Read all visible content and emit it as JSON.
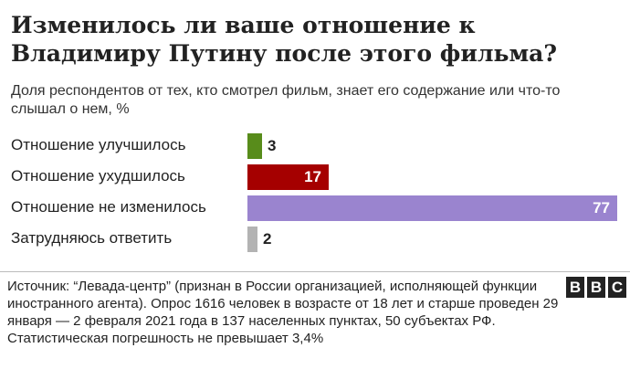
{
  "title": "Изменилось ли ваше отношение к Владимиру Путину после этого фильма?",
  "subtitle": "Доля респондентов от тех, кто смотрел фильм, знает его содержание или что-то слышал о нем, %",
  "chart_data": {
    "type": "bar",
    "orientation": "horizontal",
    "categories": [
      "Отношение улучшилось",
      "Отношение ухудшилось",
      "Отношение не изменилось",
      "Затрудняюсь ответить"
    ],
    "values": [
      3,
      17,
      77,
      2
    ],
    "colors": [
      "#588c1b",
      "#a50000",
      "#9a84cf",
      "#b3b3b3"
    ],
    "xlim": [
      0,
      77
    ],
    "grid": false,
    "legend": "none"
  },
  "source": "Источник: “Левада-центр” (признан в России организацией, исполняющей функции иностранного агента). Опрос 1616 человек в возрасте от 18 лет и старше проведен 29 января — 2 февраля 2021 года в 137 населенных пунктах, 50 субъектах РФ. Статистическая погрешность не превышает 3,4%",
  "logo": {
    "letters": [
      "B",
      "B",
      "C"
    ]
  }
}
